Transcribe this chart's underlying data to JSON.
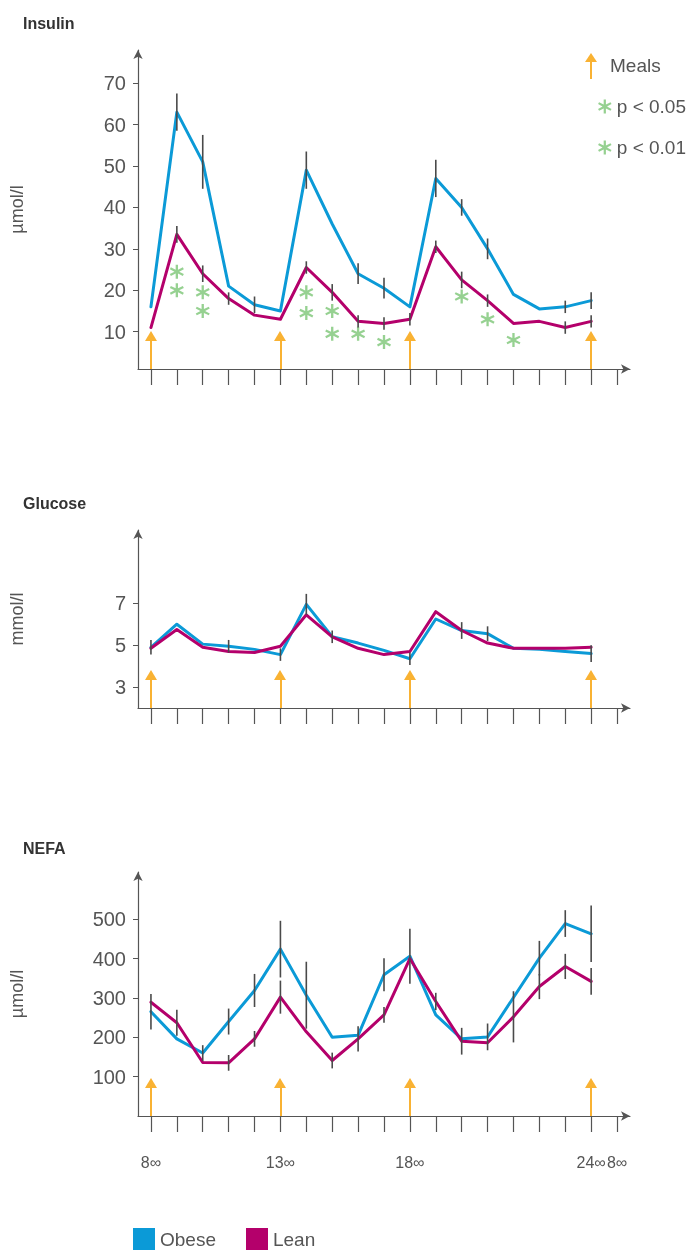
{
  "chart_data": [
    {
      "type": "line",
      "title": "Insulin",
      "ylabel": "µmol/l",
      "categories": [
        "8∞",
        null,
        null,
        null,
        null,
        "13∞",
        null,
        null,
        null,
        null,
        "18∞",
        null,
        null,
        null,
        null,
        null,
        null,
        "24∞",
        "8∞"
      ],
      "series": [
        {
          "color": "#0b9ad7",
          "values": [
            16,
            63,
            51,
            21,
            16.5,
            15,
            49,
            36,
            24,
            20.5,
            16,
            47,
            40,
            30,
            19,
            15.5,
            16,
            17.5,
            null
          ],
          "errors": [
            null,
            4.5,
            6.5,
            null,
            2,
            null,
            4.5,
            null,
            2.5,
            2.5,
            null,
            4.5,
            2,
            2.5,
            null,
            null,
            1.5,
            2,
            null
          ]
        },
        {
          "color": "#b4006b",
          "values": [
            11,
            33.5,
            24,
            18,
            14,
            13,
            25.5,
            19.5,
            12.5,
            12,
            13,
            30.5,
            22.5,
            17.5,
            12,
            12.5,
            11,
            12.5,
            null
          ],
          "errors": [
            null,
            2,
            2,
            1.5,
            null,
            null,
            1.5,
            2,
            1.5,
            1.5,
            1.5,
            1.5,
            2,
            1.5,
            null,
            null,
            1.5,
            1.5,
            null
          ]
        },
        {
          "type": "scatter",
          "name": "p < 0.05",
          "color": "#7cc576",
          "marker": "star",
          "values": [
            null,
            null,
            null,
            null,
            null,
            null,
            null,
            null,
            9.5,
            7.5,
            null,
            null,
            18.5,
            13,
            8,
            null,
            null,
            null,
            null
          ]
        },
        {
          "type": "scatter",
          "name": "p < 0.01",
          "color": "#7cc576",
          "marker": "star",
          "values": [
            null,
            24.5,
            19.5,
            null,
            null,
            null,
            19.5,
            15,
            null,
            null,
            null,
            null,
            null,
            null,
            null,
            null,
            null,
            null,
            null
          ]
        },
        {
          "type": "scatter",
          "color": "#7cc576",
          "marker": "star",
          "values": [
            null,
            20,
            15,
            null,
            null,
            null,
            14.5,
            9.5,
            null,
            null,
            null,
            null,
            null,
            null,
            null,
            null,
            null,
            null,
            null
          ]
        }
      ],
      "ylim": [
        1,
        78
      ],
      "yticks": [
        10,
        20,
        30,
        40,
        50,
        60,
        70
      ],
      "grid": false,
      "marker": "none",
      "legend": "top right",
      "tick_labels": "y",
      "ref_lines": [
        {
          "axis": "x",
          "value": "8∞",
          "label": "Meals",
          "color": "#f9b233"
        },
        {
          "axis": "x",
          "value": "13∞",
          "color": "#f9b233"
        },
        {
          "axis": "x",
          "value": "18∞",
          "color": "#f9b233"
        },
        {
          "axis": "x",
          "value": "24∞",
          "color": "#f9b233"
        }
      ]
    },
    {
      "type": "line",
      "title": "Glucose",
      "ylabel": "mmol/l",
      "categories": [
        "8∞",
        null,
        null,
        null,
        null,
        "13∞",
        null,
        null,
        null,
        null,
        "18∞",
        null,
        null,
        null,
        null,
        null,
        null,
        "24∞",
        "8∞"
      ],
      "series": [
        {
          "color": "#0b9ad7",
          "values": [
            4.9,
            6.0,
            5.05,
            4.95,
            4.8,
            4.55,
            6.95,
            5.4,
            5.1,
            4.75,
            4.35,
            6.25,
            5.7,
            5.55,
            4.85,
            4.8,
            4.7,
            4.6,
            null
          ],
          "errors": [
            0.35,
            null,
            null,
            0.3,
            null,
            0.3,
            0.5,
            0.3,
            null,
            null,
            0.3,
            null,
            0.4,
            0.35,
            null,
            null,
            null,
            0.4,
            null
          ]
        },
        {
          "color": "#b4006b",
          "values": [
            4.85,
            5.75,
            4.9,
            4.7,
            4.65,
            4.95,
            6.45,
            5.4,
            4.85,
            4.55,
            4.7,
            6.6,
            5.7,
            5.1,
            4.85,
            4.85,
            4.85,
            4.9,
            null
          ]
        }
      ],
      "ylim": [
        2,
        10.5
      ],
      "yticks": [
        3,
        5,
        7
      ],
      "grid": false,
      "marker": "none",
      "tick_labels": "y",
      "ref_lines": [
        {
          "axis": "x",
          "value": "8∞",
          "color": "#f9b233"
        },
        {
          "axis": "x",
          "value": "13∞",
          "color": "#f9b233"
        },
        {
          "axis": "x",
          "value": "18∞",
          "color": "#f9b233"
        },
        {
          "axis": "x",
          "value": "24∞",
          "color": "#f9b233"
        }
      ]
    },
    {
      "type": "line",
      "title": "NEFA",
      "ylabel": "µmol/l",
      "categories": [
        "8∞",
        null,
        null,
        null,
        null,
        "13∞",
        null,
        null,
        null,
        null,
        "18∞",
        null,
        null,
        null,
        null,
        null,
        null,
        "24∞",
        "8∞"
      ],
      "series": [
        {
          "name": "Obese",
          "color": "#0b9ad7",
          "values": [
            265,
            196,
            160,
            240,
            319,
            424,
            307,
            200,
            205,
            359,
            406,
            257,
            196,
            201,
            301,
            401,
            489,
            463,
            null
          ],
          "errors": [
            45,
            null,
            20,
            33,
            42,
            72,
            85,
            null,
            null,
            42,
            70,
            null,
            null,
            34,
            null,
            44,
            34,
            72,
            null
          ]
        },
        {
          "name": "Lean",
          "color": "#b4006b",
          "values": [
            289,
            237,
            136,
            135,
            196,
            302,
            214,
            141,
            196,
            257,
            400,
            291,
            190,
            186,
            252,
            329,
            380,
            342,
            null
          ],
          "errors": [
            null,
            33,
            null,
            20,
            20,
            42,
            null,
            20,
            32,
            20,
            null,
            22,
            34,
            null,
            65,
            32,
            32,
            34,
            null
          ]
        }
      ],
      "ylim": [
        0,
        620
      ],
      "yticks": [
        100,
        200,
        300,
        400,
        500
      ],
      "grid": false,
      "marker": "none",
      "legend": "bottom",
      "ref_lines": [
        {
          "axis": "x",
          "value": "8∞",
          "color": "#f9b233"
        },
        {
          "axis": "x",
          "value": "13∞",
          "color": "#f9b233"
        },
        {
          "axis": "x",
          "value": "18∞",
          "color": "#f9b233"
        },
        {
          "axis": "x",
          "value": "24∞",
          "color": "#f9b233"
        }
      ]
    }
  ]
}
